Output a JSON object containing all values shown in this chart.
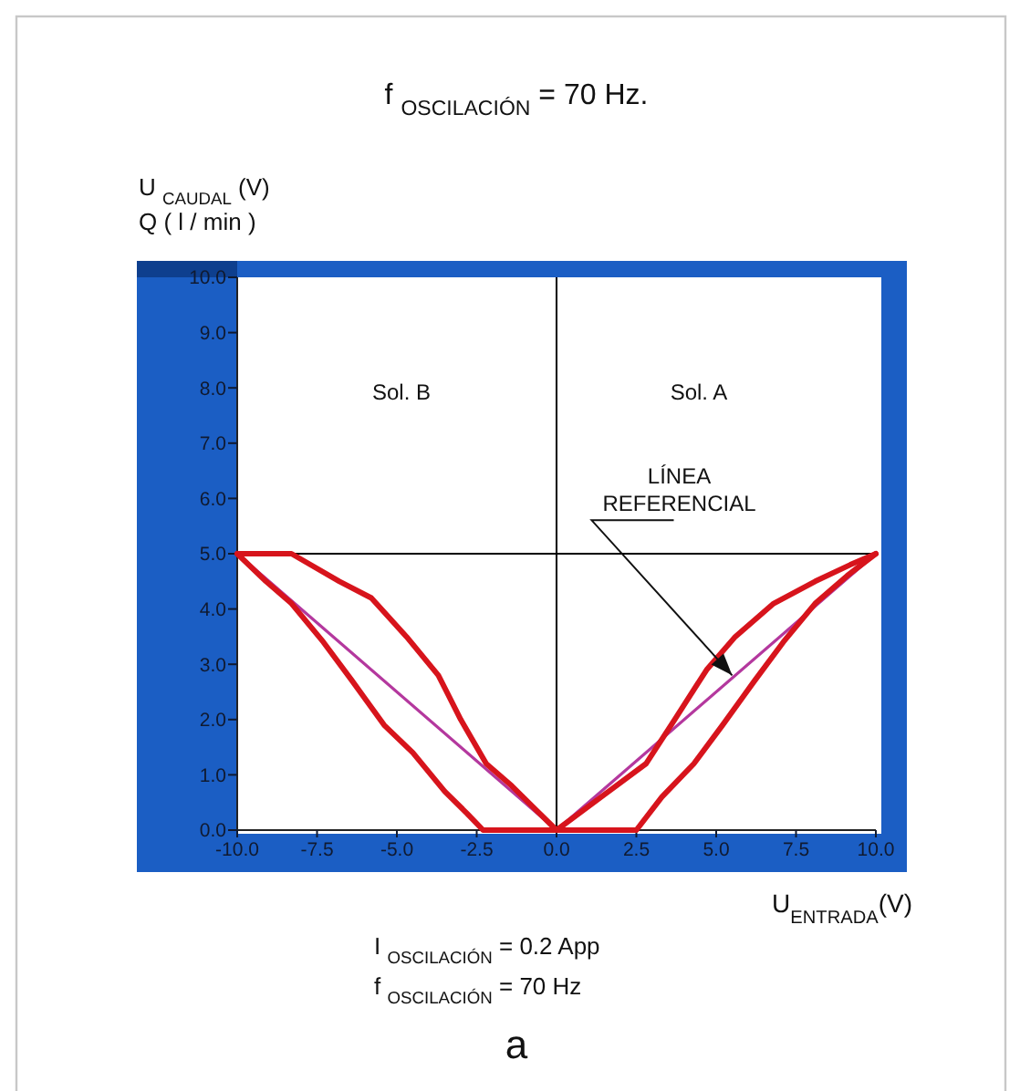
{
  "chart_data": {
    "type": "line",
    "title": "f $_{OSCILACIÓN}$ = 70 Hz.",
    "xlabel": "U$_{ENTRADA}$(V)",
    "ylabel": "U $_{CAUDAL}$ (V)\nQ ( l / min )",
    "xlim": [
      -10,
      10
    ],
    "ylim": [
      0,
      10
    ],
    "xticks": [
      {
        "value": -10,
        "label": "-10.0"
      },
      {
        "value": -7.5,
        "label": "-7.5"
      },
      {
        "value": -5,
        "label": "-5.0"
      },
      {
        "value": -2.5,
        "label": "-2.5"
      },
      {
        "value": 0,
        "label": "0.0"
      },
      2.5,
      {
        "value": 5,
        "label": "5.0"
      },
      7.5,
      {
        "value": 10,
        "label": "10.0"
      }
    ],
    "yticks": [
      {
        "value": 0,
        "label": "0.0"
      },
      {
        "value": 1,
        "label": "1.0"
      },
      {
        "value": 2,
        "label": "2.0"
      },
      {
        "value": 3,
        "label": "3.0"
      },
      {
        "value": 4,
        "label": "4.0"
      },
      {
        "value": 5,
        "label": "5.0"
      },
      {
        "value": 6,
        "label": "6.0"
      },
      {
        "value": 7,
        "label": "7.0"
      },
      {
        "value": 8,
        "label": "8.0"
      },
      {
        "value": 9,
        "label": "9.0"
      },
      {
        "value": 10,
        "label": "10.0"
      }
    ],
    "series": [
      {
        "color": "#b4389e",
        "x": [
          -10,
          0,
          10
        ],
        "values": [
          5,
          0,
          5
        ]
      },
      {
        "color": "#d7141c",
        "x": [
          -10,
          -8.3,
          -6.8,
          -5.8,
          -4.7,
          -3.7,
          -3.0,
          -2.2,
          -1.4,
          -0.7,
          0,
          2.5,
          3.3,
          4.3,
          5.2,
          6.2,
          7.1,
          8.1,
          9.1,
          10
        ],
        "values": [
          5,
          5.0,
          4.5,
          4.2,
          3.5,
          2.8,
          2.0,
          1.2,
          0.8,
          0.4,
          0,
          0,
          0.6,
          1.2,
          1.9,
          2.7,
          3.4,
          4.1,
          4.6,
          5
        ]
      },
      {
        "color": "#d7141c",
        "x": [
          -10,
          -9.1,
          -8.3,
          -7.3,
          -6.4,
          -5.4,
          -4.5,
          -3.5,
          -2.8,
          -2.3,
          0,
          1.4,
          2.8,
          3.7,
          4.7,
          5.6,
          6.8,
          8.1,
          9.2,
          10
        ],
        "values": [
          5,
          4.5,
          4.1,
          3.4,
          2.7,
          1.9,
          1.4,
          0.7,
          0.3,
          0,
          0,
          0.6,
          1.2,
          2.0,
          2.9,
          3.5,
          4.1,
          4.5,
          4.8,
          5
        ]
      }
    ],
    "ref_lines": [
      {
        "axis": "y",
        "value": 5,
        "color": "#000000"
      },
      {
        "axis": "x",
        "value": 0,
        "color": "#000000"
      }
    ],
    "annotations": [
      "Sol. B",
      "Sol. A",
      {
        "text": "LÍNEA\nREFERENCIAL",
        "x": 5.5,
        "y": 2.8
      },
      "I $_{OSCILACIÓN}$ = 0.2 App",
      "f $_{OSCILACIÓN}$ = 70 Hz",
      "a"
    ]
  }
}
